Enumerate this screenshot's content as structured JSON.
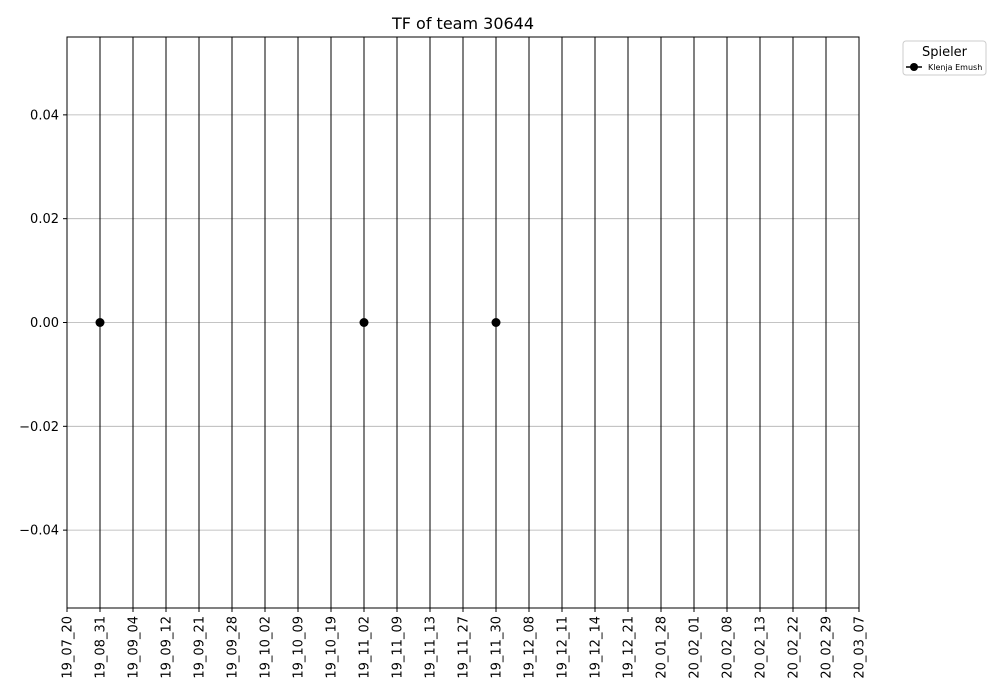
{
  "chart_data": {
    "type": "line",
    "title": "TF of team 30644",
    "xlabel": "",
    "ylabel": "",
    "categories": [
      "19_07_20",
      "19_08_31",
      "19_09_04",
      "19_09_12",
      "19_09_21",
      "19_09_28",
      "19_10_02",
      "19_10_09",
      "19_10_19",
      "19_11_02",
      "19_11_09",
      "19_11_13",
      "19_11_27",
      "19_11_30",
      "19_12_08",
      "19_12_11",
      "19_12_14",
      "19_12_21",
      "20_01_28",
      "20_02_01",
      "20_02_08",
      "20_02_13",
      "20_02_22",
      "20_02_29",
      "20_03_07"
    ],
    "yticks": [
      "0.04",
      "0.02",
      "0.00",
      "−0.02",
      "−0.04"
    ],
    "ytick_values": [
      0.04,
      0.02,
      0.0,
      -0.02,
      -0.04
    ],
    "ylim": [
      -0.055,
      0.055
    ],
    "grid": "y",
    "vertical_lines_at_categories": true,
    "legend": {
      "title": "Spieler",
      "placement": "outside-top-right",
      "entries": [
        "Klenja Emush"
      ]
    },
    "series": [
      {
        "name": "Klenja Emush",
        "color": "#000000",
        "marker": "circle",
        "points": [
          {
            "x": "19_08_31",
            "y": 0.0
          },
          {
            "x": "19_11_02",
            "y": 0.0
          },
          {
            "x": "19_11_30",
            "y": 0.0
          }
        ]
      }
    ]
  }
}
